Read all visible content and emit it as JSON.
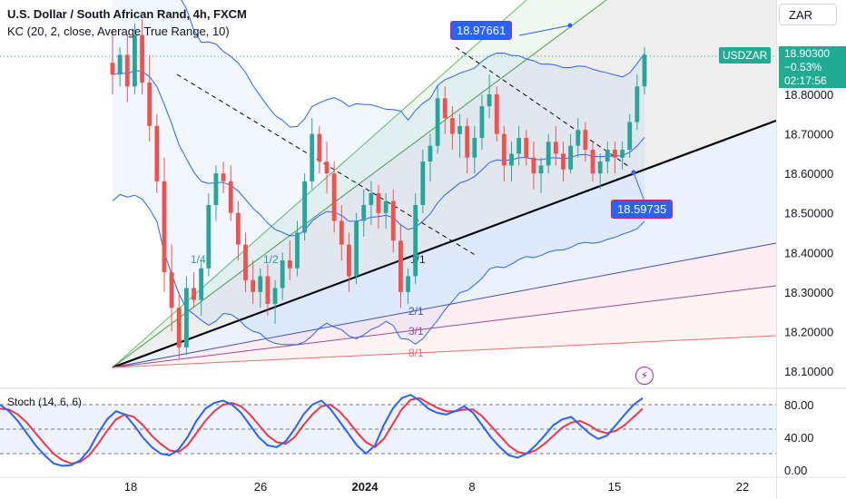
{
  "header": {
    "title": "U.S. Dollar / South African Rand, 4h, FXCM",
    "indicator_kc": "KC (20, 2, close, Average True Range, 10)",
    "indicator_stoch": "Stoch (14, 6, 6)"
  },
  "currency_button": "ZAR",
  "symbol_label": "USDZAR",
  "last_price": {
    "price": "18.90300",
    "change": "−0.53%",
    "countdown": "02:17:56"
  },
  "annotations": {
    "high_tag": "18.97661",
    "low_tag": "18.59735",
    "fan_labels": [
      "1/4",
      "1/2",
      "1/1",
      "2/1",
      "3/1",
      "8/1"
    ]
  },
  "colors": {
    "up": "#26a69a",
    "down": "#ef5350",
    "channel": "#2962ff",
    "stoch_k": "#2962ff",
    "stoch_d": "#f23645",
    "price_label": "#22ab94"
  },
  "chart_data": [
    {
      "type": "candlestick",
      "y_ticks": [
        "18.80000",
        "18.70000",
        "18.60000",
        "18.50000",
        "18.40000",
        "18.30000",
        "18.20000",
        "18.10000"
      ],
      "x_ticks": [
        "18",
        "26",
        "2024",
        "8",
        "15",
        "22"
      ],
      "ylim": [
        18.08,
        19.0
      ],
      "grid": false,
      "candles": [
        [
          18.88,
          18.96,
          18.8,
          18.85
        ],
        [
          18.85,
          18.92,
          18.82,
          18.9
        ],
        [
          18.9,
          18.95,
          18.78,
          18.82
        ],
        [
          18.82,
          18.98,
          18.8,
          18.95
        ],
        [
          18.95,
          18.99,
          18.8,
          18.83
        ],
        [
          18.83,
          18.9,
          18.68,
          18.72
        ],
        [
          18.72,
          18.75,
          18.55,
          18.58
        ],
        [
          18.58,
          18.64,
          18.3,
          18.35
        ],
        [
          18.35,
          18.42,
          18.2,
          18.26
        ],
        [
          18.26,
          18.3,
          18.13,
          18.16
        ],
        [
          18.16,
          18.34,
          18.14,
          18.31
        ],
        [
          18.31,
          18.35,
          18.26,
          18.28
        ],
        [
          18.28,
          18.38,
          18.24,
          18.36
        ],
        [
          18.36,
          18.55,
          18.34,
          18.52
        ],
        [
          18.52,
          18.62,
          18.48,
          18.6
        ],
        [
          18.6,
          18.63,
          18.55,
          18.58
        ],
        [
          18.58,
          18.62,
          18.48,
          18.5
        ],
        [
          18.5,
          18.53,
          18.38,
          18.42
        ],
        [
          18.42,
          18.45,
          18.3,
          18.33
        ],
        [
          18.33,
          18.38,
          18.27,
          18.3
        ],
        [
          18.3,
          18.36,
          18.26,
          18.34
        ],
        [
          18.34,
          18.37,
          18.24,
          18.27
        ],
        [
          18.27,
          18.33,
          18.22,
          18.31
        ],
        [
          18.31,
          18.4,
          18.28,
          18.38
        ],
        [
          18.38,
          18.43,
          18.33,
          18.36
        ],
        [
          18.36,
          18.48,
          18.34,
          18.45
        ],
        [
          18.45,
          18.6,
          18.43,
          18.58
        ],
        [
          18.58,
          18.74,
          18.56,
          18.7
        ],
        [
          18.7,
          18.72,
          18.6,
          18.63
        ],
        [
          18.63,
          18.68,
          18.55,
          18.6
        ],
        [
          18.6,
          18.63,
          18.45,
          18.48
        ],
        [
          18.48,
          18.52,
          18.38,
          18.42
        ],
        [
          18.42,
          18.45,
          18.3,
          18.34
        ],
        [
          18.34,
          18.5,
          18.32,
          18.48
        ],
        [
          18.48,
          18.56,
          18.44,
          18.52
        ],
        [
          18.52,
          18.58,
          18.47,
          18.55
        ],
        [
          18.55,
          18.57,
          18.46,
          18.5
        ],
        [
          18.5,
          18.55,
          18.46,
          18.53
        ],
        [
          18.53,
          18.56,
          18.4,
          18.43
        ],
        [
          18.43,
          18.47,
          18.26,
          18.3
        ],
        [
          18.3,
          18.36,
          18.27,
          18.34
        ],
        [
          18.34,
          18.55,
          18.32,
          18.52
        ],
        [
          18.52,
          18.66,
          18.5,
          18.63
        ],
        [
          18.63,
          18.7,
          18.58,
          18.67
        ],
        [
          18.67,
          18.82,
          18.65,
          18.79
        ],
        [
          18.79,
          18.82,
          18.7,
          18.74
        ],
        [
          18.74,
          18.77,
          18.66,
          18.7
        ],
        [
          18.7,
          18.75,
          18.64,
          18.72
        ],
        [
          18.72,
          18.74,
          18.6,
          18.64
        ],
        [
          18.64,
          18.72,
          18.6,
          18.69
        ],
        [
          18.69,
          18.8,
          18.66,
          18.77
        ],
        [
          18.77,
          18.85,
          18.74,
          18.8
        ],
        [
          18.8,
          18.82,
          18.68,
          18.7
        ],
        [
          18.7,
          18.72,
          18.58,
          18.62
        ],
        [
          18.62,
          18.68,
          18.58,
          18.65
        ],
        [
          18.65,
          18.72,
          18.62,
          18.69
        ],
        [
          18.69,
          18.71,
          18.62,
          18.64
        ],
        [
          18.64,
          18.68,
          18.56,
          18.6
        ],
        [
          18.6,
          18.64,
          18.55,
          18.62
        ],
        [
          18.62,
          18.7,
          18.6,
          18.68
        ],
        [
          18.68,
          18.72,
          18.62,
          18.65
        ],
        [
          18.65,
          18.68,
          18.58,
          18.61
        ],
        [
          18.61,
          18.7,
          18.6,
          18.67
        ],
        [
          18.67,
          18.74,
          18.64,
          18.71
        ],
        [
          18.71,
          18.73,
          18.63,
          18.66
        ],
        [
          18.66,
          18.68,
          18.58,
          18.6
        ],
        [
          18.6,
          18.65,
          18.56,
          18.63
        ],
        [
          18.63,
          18.68,
          18.6,
          18.66
        ],
        [
          18.66,
          18.68,
          18.6,
          18.64
        ],
        [
          18.64,
          18.68,
          18.61,
          18.66
        ],
        [
          18.66,
          18.75,
          18.64,
          18.73
        ],
        [
          18.73,
          18.85,
          18.71,
          18.82
        ],
        [
          18.82,
          18.92,
          18.8,
          18.9
        ]
      ]
    },
    {
      "type": "line",
      "name": "Stoch (14, 6, 6)",
      "y_ticks": [
        "80.00",
        "40.00",
        "0.00"
      ],
      "ylim": [
        0,
        100
      ],
      "series": [
        {
          "values": [
            80,
            72,
            60,
            45,
            30,
            18,
            8,
            5,
            6,
            12,
            25,
            45,
            62,
            72,
            68,
            55,
            40,
            28,
            20,
            18,
            25,
            40,
            60,
            75,
            82,
            85,
            80,
            70,
            55,
            40,
            30,
            28,
            35,
            50,
            68,
            80,
            85,
            75,
            60,
            45,
            30,
            20,
            30,
            55,
            75,
            88,
            92,
            85,
            75,
            70,
            68,
            72,
            78,
            70,
            55,
            40,
            28,
            18,
            15,
            20,
            30,
            42,
            55,
            62,
            65,
            55,
            45,
            38,
            42,
            55,
            68,
            80,
            88
          ]
        },
        {
          "values": [
            75,
            74,
            68,
            58,
            45,
            32,
            20,
            12,
            8,
            10,
            18,
            32,
            48,
            62,
            68,
            65,
            55,
            42,
            32,
            24,
            22,
            30,
            45,
            60,
            72,
            80,
            82,
            78,
            68,
            55,
            42,
            34,
            32,
            40,
            55,
            68,
            78,
            80,
            72,
            60,
            46,
            34,
            28,
            38,
            56,
            74,
            86,
            88,
            82,
            76,
            72,
            72,
            74,
            74,
            66,
            54,
            42,
            30,
            22,
            20,
            24,
            32,
            42,
            52,
            58,
            60,
            55,
            48,
            45,
            48,
            55,
            65,
            75
          ]
        }
      ]
    }
  ]
}
